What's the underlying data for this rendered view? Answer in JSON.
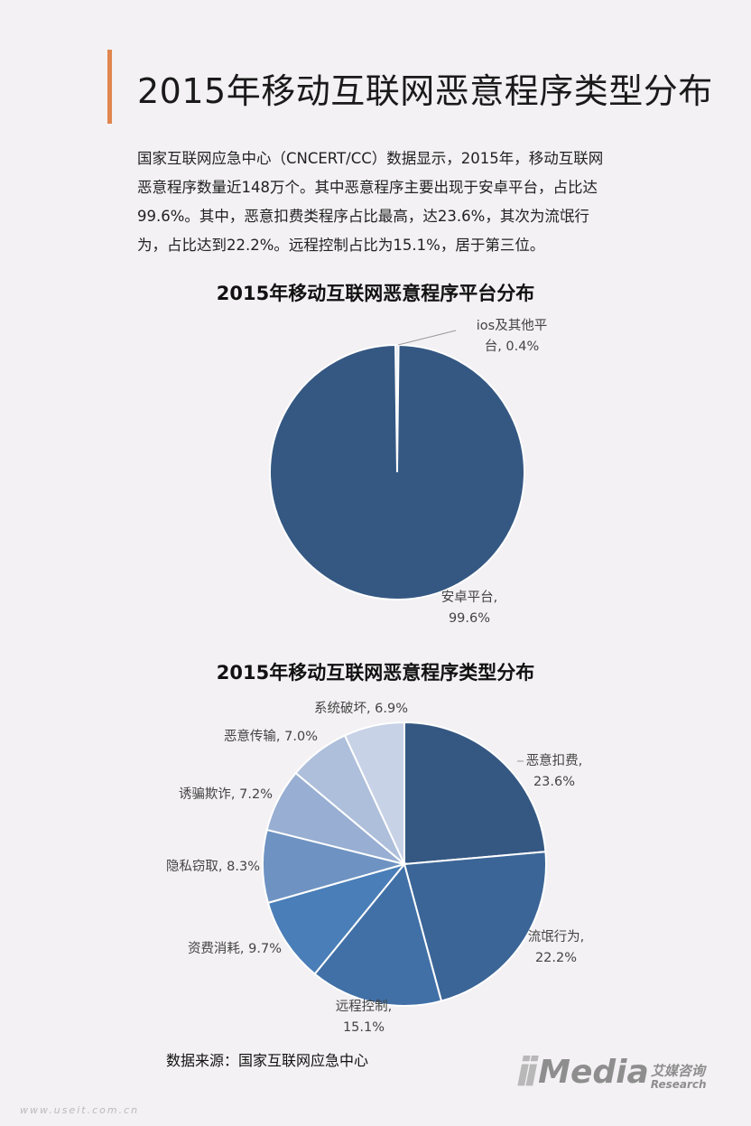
{
  "page": {
    "title": "2015年移动互联网恶意程序类型分布",
    "intro_lines": [
      "国家互联网应急中心（CNCERT/CC）数据显示，2015年，移动互联网",
      "恶意程序数量近148万个。其中恶意程序主要出现于安卓平台，占比达",
      "99.6%。其中，恶意扣费类程序占比最高，达23.6%，其次为流氓行",
      "为，占比达到22.2%。远程控制占比为15.1%，居于第三位。"
    ],
    "source": "数据来源：国家互联网应急中心",
    "watermark_site": "www.useit.com.cn",
    "logo": {
      "main": "Media",
      "cn": "艾媒咨询",
      "en": "Research"
    }
  },
  "chart_data": [
    {
      "type": "pie",
      "title": "2015年移动互联网恶意程序平台分布",
      "slices": [
        {
          "name": "ios及其他平台",
          "value": 0.4,
          "label_lines": [
            "ios及其他平",
            "台, 0.4%"
          ],
          "color": "#dde3ec"
        },
        {
          "name": "安卓平台",
          "value": 99.6,
          "label_lines": [
            "安卓平台,",
            "99.6%"
          ],
          "color": "#355883"
        }
      ]
    },
    {
      "type": "pie",
      "title": "2015年移动互联网恶意程序类型分布",
      "slices": [
        {
          "name": "恶意扣费",
          "value": 23.6,
          "label_lines": [
            "恶意扣费,",
            "23.6%"
          ],
          "color": "#355883"
        },
        {
          "name": "流氓行为",
          "value": 22.2,
          "label_lines": [
            "流氓行为,",
            "22.2%"
          ],
          "color": "#3b6597"
        },
        {
          "name": "远程控制",
          "value": 15.1,
          "label_lines": [
            "远程控制,",
            "15.1%"
          ],
          "color": "#4170a7"
        },
        {
          "name": "资费消耗",
          "value": 9.7,
          "label_lines": [
            "资费消耗, 9.7%"
          ],
          "color": "#4a7eb8"
        },
        {
          "name": "隐私窃取",
          "value": 8.3,
          "label_lines": [
            "隐私窃取, 8.3%"
          ],
          "color": "#6e93c2"
        },
        {
          "name": "诱骗欺诈",
          "value": 7.2,
          "label_lines": [
            "诱骗欺诈, 7.2%"
          ],
          "color": "#98aed2"
        },
        {
          "name": "恶意传输",
          "value": 7.0,
          "label_lines": [
            "恶意传输, 7.0%"
          ],
          "color": "#aebfdb"
        },
        {
          "name": "系统破坏",
          "value": 6.9,
          "label_lines": [
            "系统破坏, 6.9%"
          ],
          "color": "#c7d2e6"
        }
      ]
    }
  ]
}
